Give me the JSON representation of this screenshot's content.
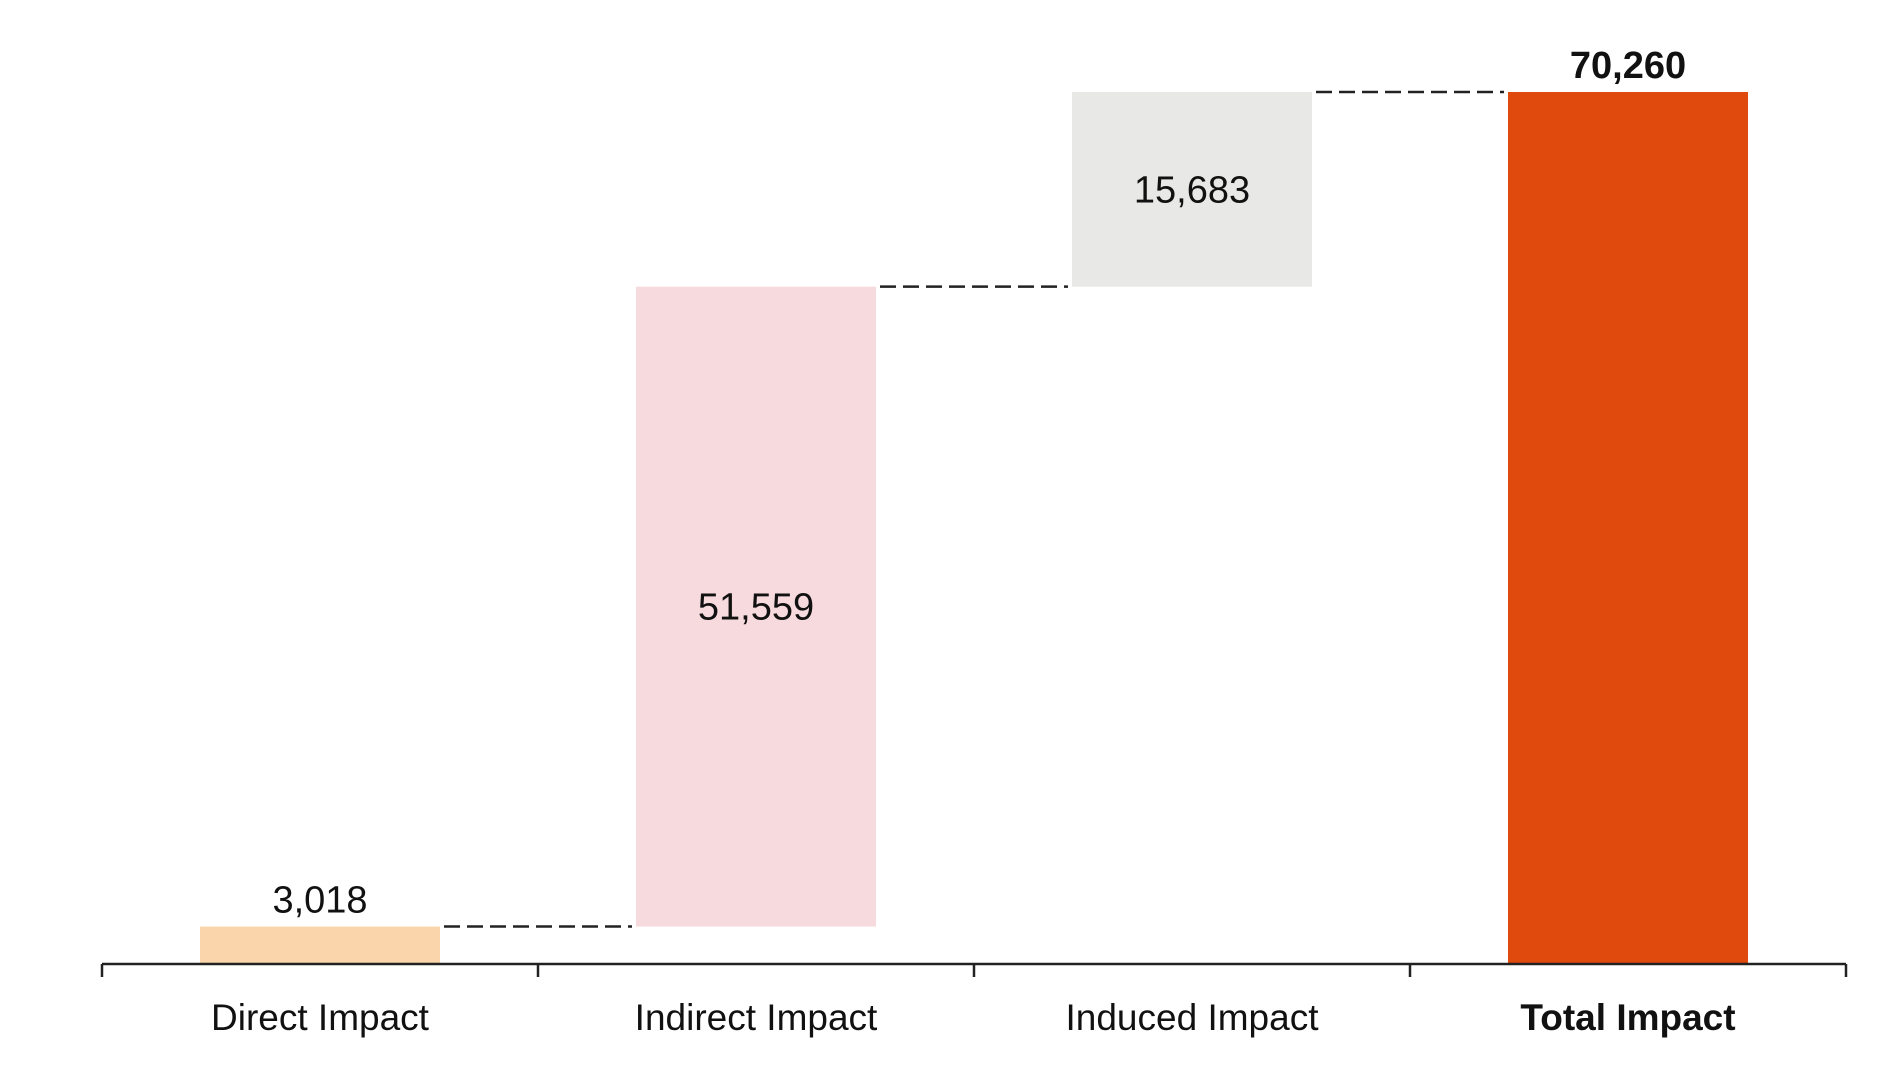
{
  "chart_data": {
    "type": "bar",
    "subtype": "waterfall",
    "categories": [
      "Direct Impact",
      "Indirect Impact",
      "Induced Impact",
      "Total Impact"
    ],
    "values": [
      3018,
      51559,
      15683,
      70260
    ],
    "value_labels": [
      "3,018",
      "51,559",
      "15,683",
      "70,260"
    ],
    "is_total": [
      false,
      false,
      false,
      true
    ],
    "bar_colors": [
      "#FAD4AA",
      "#F7DADD",
      "#E8E8E6",
      "#E04A0C"
    ],
    "connector_lines": "dashed",
    "title": "",
    "xlabel": "",
    "ylabel": "",
    "ylim": [
      0,
      70260
    ],
    "grid": false,
    "legend": "none"
  }
}
